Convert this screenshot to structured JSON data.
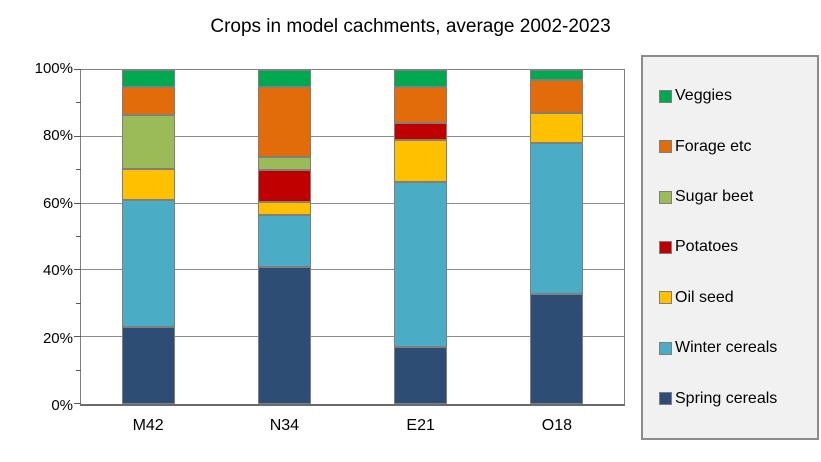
{
  "title": "Crops in model cachments, average 2002-2023",
  "y_axis": {
    "ticks": [
      {
        "label": "100%",
        "value": 100
      },
      {
        "label": "80%",
        "value": 80
      },
      {
        "label": "60%",
        "value": 60
      },
      {
        "label": "40%",
        "value": 40
      },
      {
        "label": "20%",
        "value": 20
      },
      {
        "label": "0%",
        "value": 0
      }
    ],
    "minor_tick_values": [
      90,
      70,
      50,
      30,
      10
    ],
    "gridline_values": [
      80,
      60,
      40,
      20
    ]
  },
  "legend": {
    "items": [
      {
        "label": "Veggies",
        "color": "#00A950"
      },
      {
        "label": "Forage etc",
        "color": "#E36C0A"
      },
      {
        "label": "Sugar beet",
        "color": "#9BBB59"
      },
      {
        "label": "Potatoes",
        "color": "#C00000"
      },
      {
        "label": "Oil seed",
        "color": "#FFC000"
      },
      {
        "label": "Winter cereals",
        "color": "#4BACC6"
      },
      {
        "label": "Spring cereals",
        "color": "#2E4D75"
      }
    ]
  },
  "chart_data": {
    "type": "bar",
    "stacked": true,
    "title": "Crops in model cachments, average 2002-2023",
    "xlabel": "",
    "ylabel": "",
    "ylim": [
      0,
      100
    ],
    "unit": "%",
    "grid": true,
    "legend_position": "right",
    "categories": [
      "M42",
      "N34",
      "E21",
      "O18"
    ],
    "series": [
      {
        "name": "Spring cereals",
        "color": "#2E4D75",
        "values": [
          23,
          41,
          17,
          33
        ]
      },
      {
        "name": "Winter cereals",
        "color": "#4BACC6",
        "values": [
          38,
          15.5,
          49.5,
          45
        ]
      },
      {
        "name": "Oil seed",
        "color": "#FFC000",
        "values": [
          9.5,
          4,
          12.5,
          9
        ]
      },
      {
        "name": "Potatoes",
        "color": "#C00000",
        "values": [
          0,
          9.5,
          5,
          0
        ]
      },
      {
        "name": "Sugar beet",
        "color": "#9BBB59",
        "values": [
          16,
          4,
          0,
          0
        ]
      },
      {
        "name": "Forage etc",
        "color": "#E36C0A",
        "values": [
          8.5,
          21,
          11,
          10
        ]
      },
      {
        "name": "Veggies",
        "color": "#00A950",
        "values": [
          5,
          5,
          5,
          3
        ]
      }
    ]
  }
}
